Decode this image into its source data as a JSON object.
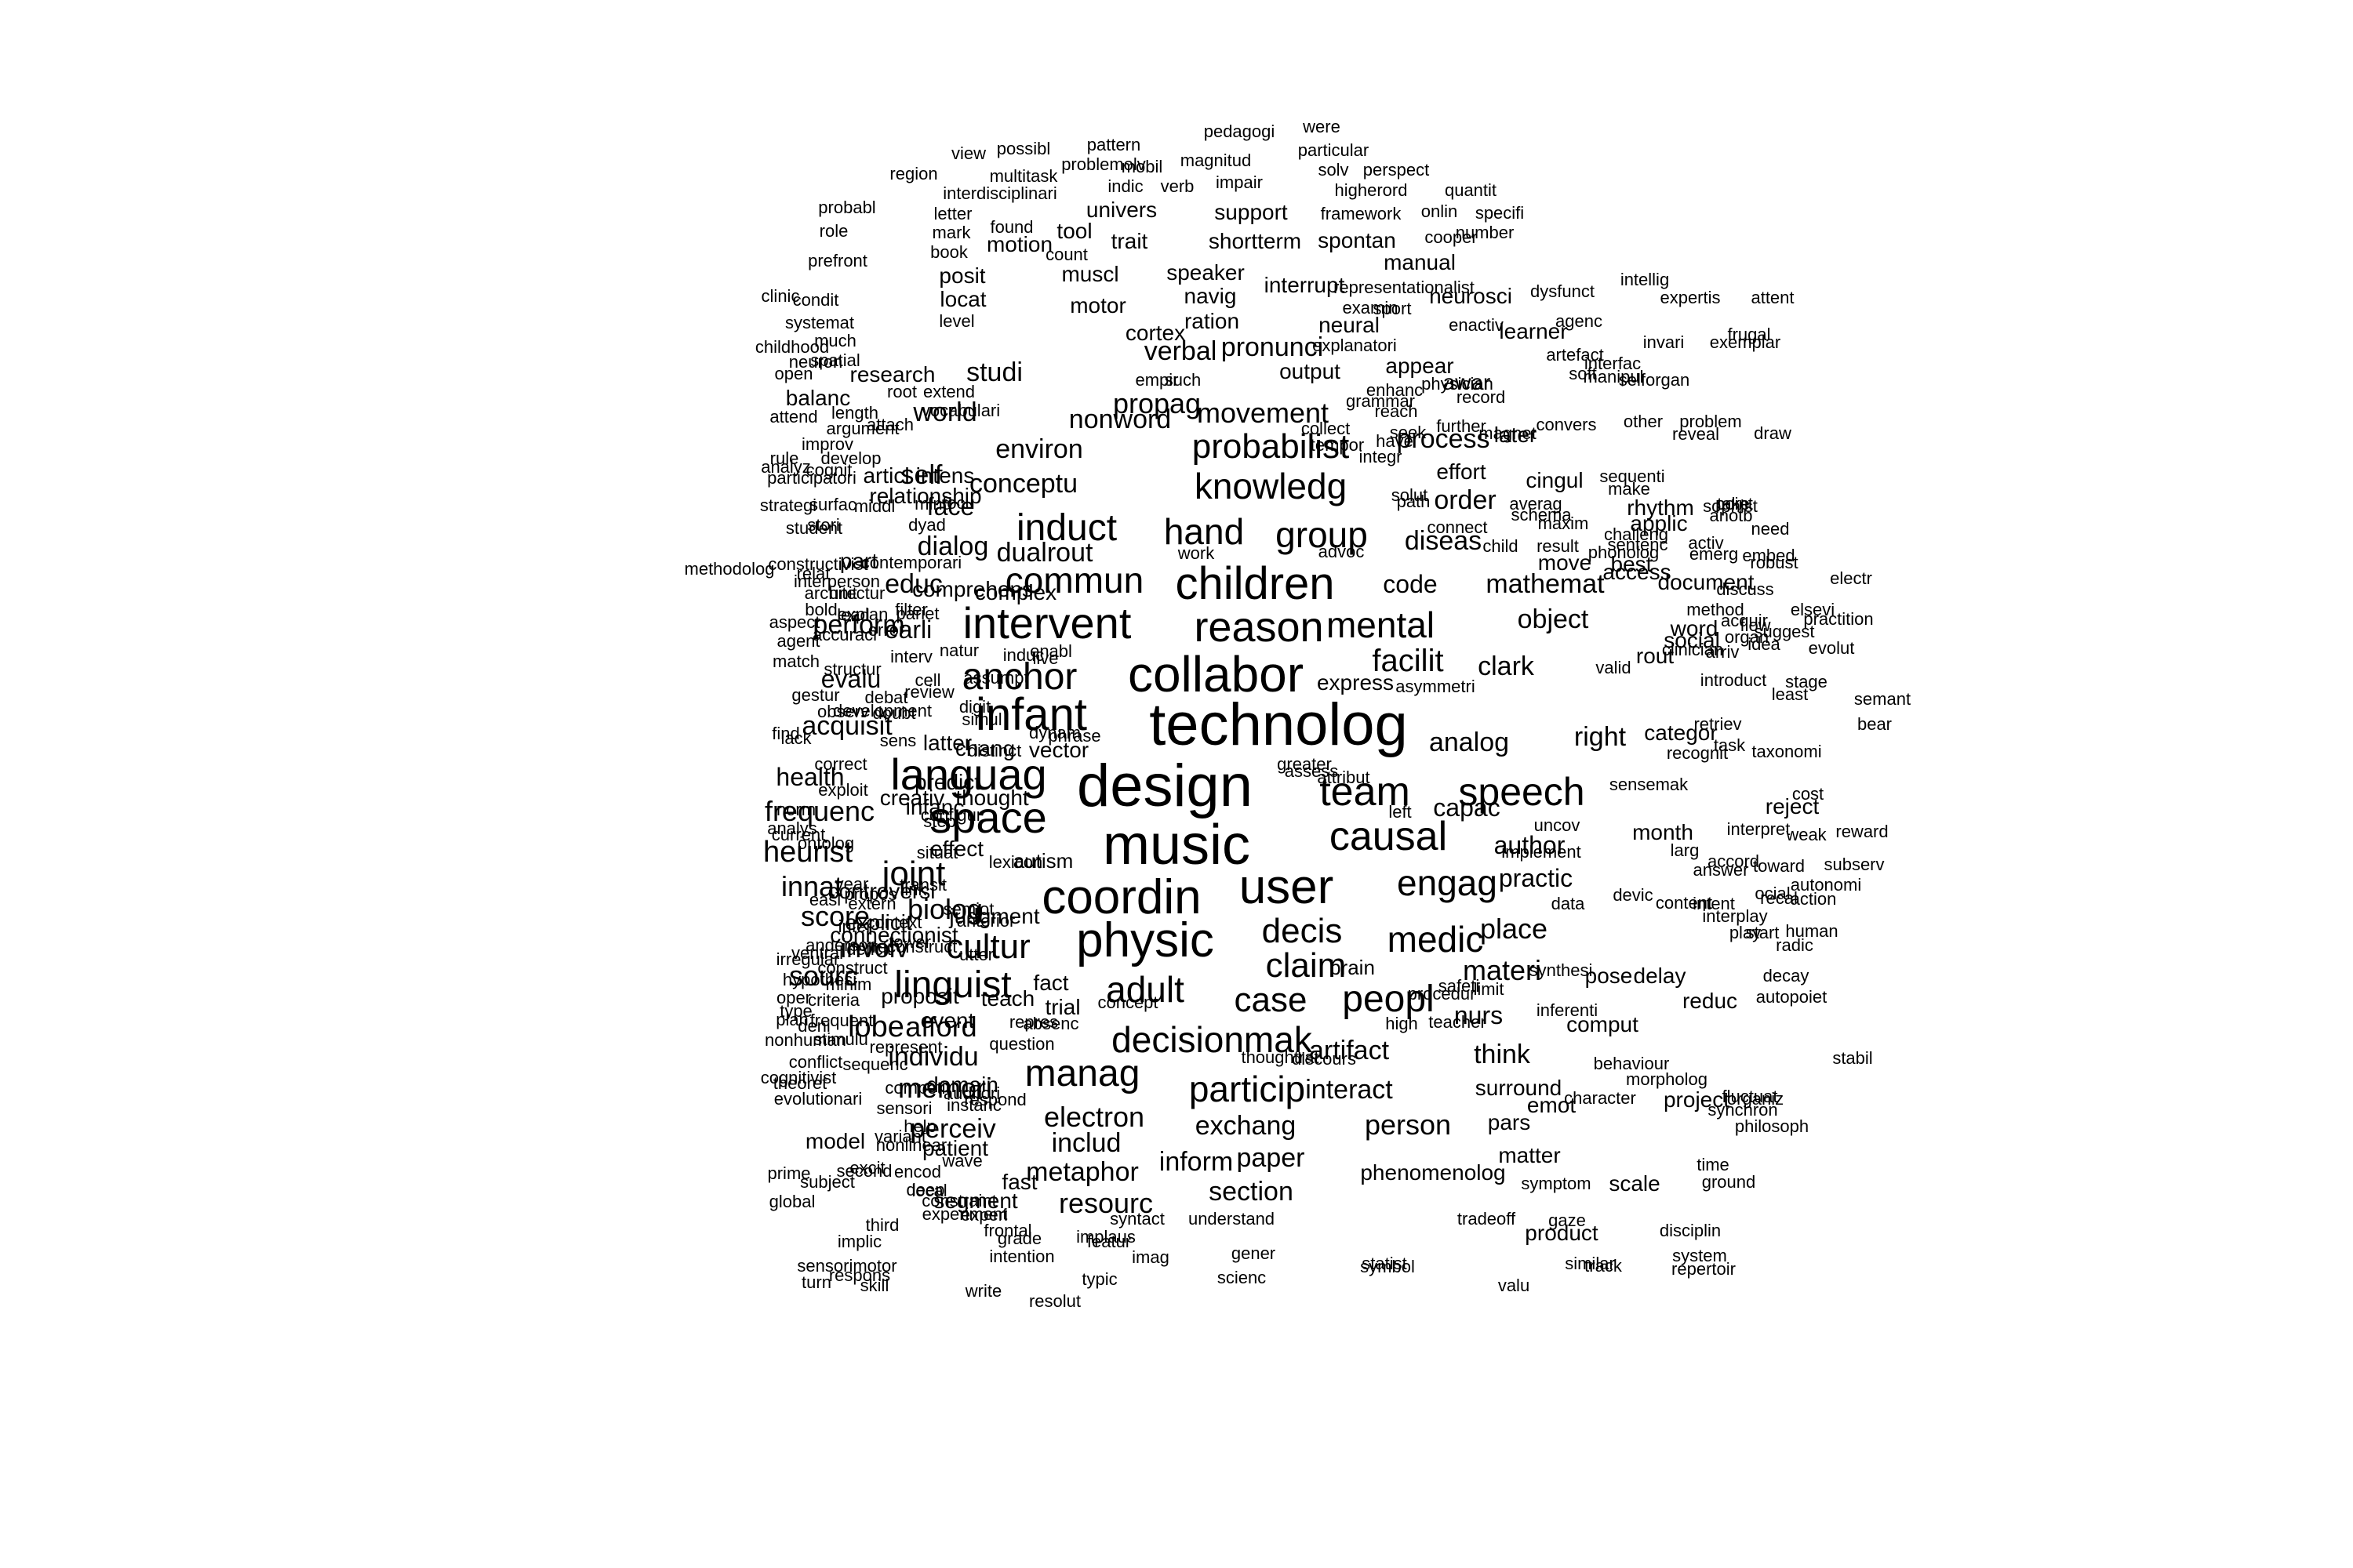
{
  "color": "#000000",
  "words": [
    "technolog",
    "design",
    "music",
    "collabor",
    "coordin",
    "physic",
    "user",
    "infant",
    "languag",
    "intervent",
    "space",
    "children",
    "causal",
    "reason",
    "team",
    "speech",
    "anchor",
    "decisionmak",
    "manag",
    "mental",
    "medic",
    "peopl",
    "engag",
    "probabilist",
    "knowledg",
    "induct",
    "commun",
    "hand",
    "group",
    "joint",
    "cultur",
    "linguist",
    "claim",
    "decis",
    "case",
    "adult",
    "particip",
    "facilit",
    "heurist",
    "innat",
    "score",
    "sourc",
    "involv",
    "biolog",
    "lobe",
    "afford",
    "individu",
    "memori",
    "perceiv",
    "electron",
    "includ",
    "metaphor",
    "exchang",
    "inform",
    "paper",
    "resourc",
    "section",
    "artifact",
    "interact",
    "person",
    "think",
    "nurs",
    "materi",
    "place",
    "practic",
    "author",
    "capac",
    "analog",
    "right",
    "clark",
    "object",
    "mathemat",
    "order",
    "diseas",
    "code",
    "process",
    "movement",
    "pronunci",
    "verbal",
    "propag",
    "nonword",
    "environ",
    "conceptu",
    "studi",
    "world",
    "self",
    "face",
    "dialog",
    "dualrout",
    "educ",
    "perform",
    "earli",
    "evalu",
    "acquisit",
    "health",
    "frequenc",
    "fact",
    "trial",
    "autism",
    "brain",
    "problemolv",
    "pedagogi",
    "were",
    "possibl",
    "pattern",
    "magnitud",
    "particular",
    "view",
    "region",
    "multitask",
    "mobil",
    "solv",
    "perspect",
    "indic",
    "verb",
    "impair",
    "higherord",
    "quantit",
    "interdisciplinari",
    "probabl",
    "letter",
    "univers",
    "support",
    "framework",
    "onlin",
    "specifi",
    "role",
    "mark",
    "found",
    "tool",
    "motion",
    "trait",
    "shortterm",
    "spontan",
    "cooper",
    "number",
    "prefront",
    "book",
    "count",
    "posit",
    "muscl",
    "speaker",
    "manual",
    "interrupt",
    "representationalist",
    "dysfunct",
    "intellig",
    "clinic",
    "locat",
    "motor",
    "navig",
    "neurosci",
    "expertis",
    "examin",
    "sport",
    "attent",
    "condit",
    "systemat",
    "level",
    "cortex",
    "ration",
    "neural",
    "learner",
    "enactiv",
    "exemplar",
    "much",
    "agenc",
    "explanatori",
    "childhood",
    "spatial",
    "invari",
    "frugal",
    "artefact",
    "neuron",
    "research",
    "appear",
    "interfac",
    "empir",
    "such",
    "output",
    "enhanc",
    "manipul",
    "balanc",
    "awar",
    "root",
    "selforgan",
    "extend",
    "physician",
    "open",
    "soft",
    "grammar",
    "record",
    "reach",
    "further",
    "convers",
    "other",
    "attend",
    "length",
    "vocabulari",
    "problem",
    "draw",
    "argument",
    "attach",
    "collect",
    "seek",
    "magnet",
    "reveal",
    "improv",
    "have",
    "rule",
    "develop",
    "analyz",
    "tempor",
    "later",
    "intens",
    "integr",
    "participatori",
    "cognit",
    "articl",
    "effort",
    "sequenti",
    "relationship",
    "make",
    "cingul",
    "solut",
    "take",
    "surfac",
    "focu",
    "path",
    "sophist",
    "averag",
    "strategi",
    "middl",
    "mind",
    "point",
    "rhythm",
    "anotb",
    "schema",
    "stori",
    "dyad",
    "student",
    "challeng",
    "applic",
    "maxim",
    "connect",
    "result",
    "phonolog",
    "need",
    "sentenc",
    "work",
    "activ",
    "advoc",
    "child",
    "move",
    "constructivist",
    "best",
    "emerg",
    "contemporari",
    "relat",
    "robust",
    "part",
    "embed",
    "methodolog",
    "interperson",
    "comprehens",
    "filter",
    "access",
    "document",
    "architectur",
    "discuss",
    "pariet",
    "method",
    "complex",
    "electr",
    "acquir",
    "unit",
    "word",
    "bold",
    "elsevi",
    "organ",
    "explan",
    "suggest",
    "aspect",
    "error",
    "lead",
    "flow",
    "idea",
    "social",
    "practition",
    "agent",
    "accuraci",
    "arriv",
    "structur",
    "interv",
    "enabl",
    "review",
    "clinician",
    "natur",
    "evolut",
    "match",
    "cell",
    "assumpt",
    "live",
    "induc",
    "rout",
    "express",
    "asymmetri",
    "valid",
    "debat",
    "introduct",
    "digit",
    "stage",
    "semant",
    "gestur",
    "observ",
    "simul",
    "least",
    "doubt",
    "bear",
    "development",
    "dynam",
    "phrase",
    "categor",
    "find",
    "sens",
    "retriev",
    "vector",
    "recognit",
    "lack",
    "latter",
    "task",
    "chang",
    "distinct",
    "greater",
    "assess",
    "attribut",
    "taxonomi",
    "correct",
    "sensemak",
    "predict",
    "thought",
    "creativ",
    "left",
    "reject",
    "infanc",
    "configur",
    "cost",
    "exploit",
    "step",
    "uncov",
    "interpret",
    "norm",
    "analys",
    "month",
    "weak",
    "ontolog",
    "current",
    "effect",
    "situat",
    "implement",
    "reward",
    "lexicon",
    "larg",
    "accord",
    "year",
    "transit",
    "toward",
    "subserv",
    "easi",
    "content",
    "answer",
    "controversi",
    "propos",
    "data",
    "devic",
    "autonomi",
    "link",
    "intent",
    "semiot",
    "ocial",
    "explicit",
    "extern",
    "context",
    "infer",
    "anterior",
    "action",
    "utter",
    "recal",
    "connectionist",
    "judgment",
    "interplay",
    "tower",
    "play",
    "anderson",
    "deficit",
    "start",
    "construct",
    "human",
    "ventral",
    "irregular",
    "radic",
    "reconstruct",
    "synthesi",
    "pose",
    "delay",
    "decay",
    "hypothesi",
    "minim",
    "safeti",
    "limit",
    "proposit",
    "reduc",
    "autopoiet",
    "oper",
    "criteria",
    "teach",
    "concept",
    "procedur",
    "inferenti",
    "type",
    "frequent",
    "event",
    "repres",
    "absenc",
    "high",
    "teacher",
    "stabil",
    "plan",
    "deni",
    "comput",
    "nonhuman",
    "stimulu",
    "represent",
    "question",
    "thoughtrat",
    "discours",
    "behaviour",
    "conflict",
    "cognitivist",
    "sequenc",
    "surround",
    "morpholog",
    "domain",
    "competit",
    "auditori",
    "theoret",
    "evolutionari",
    "respond",
    "instanc",
    "emot",
    "fluctuat",
    "sensori",
    "organiz",
    "help",
    "variant",
    "character",
    "project",
    "nonlinear",
    "pars",
    "philosoph",
    "synchron",
    "prime",
    "excit",
    "patient",
    "model",
    "encod",
    "matter",
    "time",
    "second",
    "wave",
    "subject",
    "deep",
    "fast",
    "local",
    "segment",
    "phenomenolog",
    "symptom",
    "scale",
    "ground",
    "global",
    "constraint",
    "experi",
    "implic",
    "third",
    "experiment",
    "syntact",
    "understand",
    "tradeoff",
    "product",
    "gaze",
    "disciplin",
    "frontal",
    "grade",
    "implaus",
    "system",
    "sensorimotor",
    "intention",
    "featur",
    "imag",
    "gener",
    "statist",
    "similar",
    "track",
    "repertoir",
    "turn",
    "respons",
    "skill",
    "write",
    "resolut",
    "typic",
    "scienc",
    "symbol",
    "valu"
  ]
}
